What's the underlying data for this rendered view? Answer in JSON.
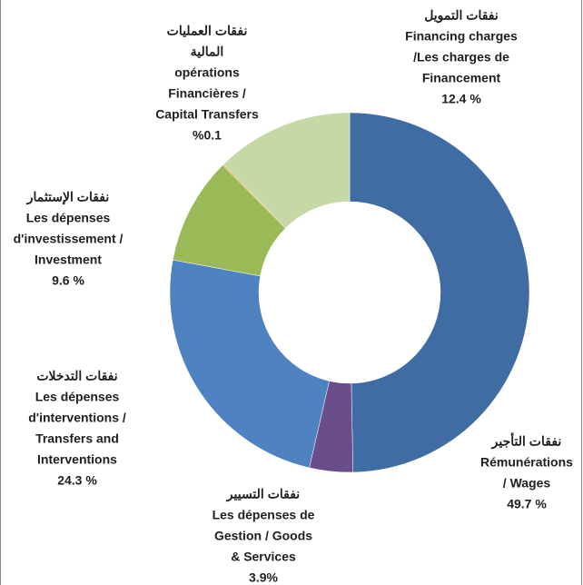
{
  "chart_data": {
    "type": "donut",
    "categories": [
      [
        "نفقات التأجير",
        "Rémunérations",
        "/  Wages"
      ],
      [
        "نفقات التسيير",
        "Les dépenses de",
        "Gestion /  Goods",
        "& Services"
      ],
      [
        "نفقات التدخلات",
        "Les dépenses",
        "d'interventions  /",
        "Transfers and",
        "Interventions"
      ],
      [
        "نفقات الإستثمار",
        "Les dépenses",
        "d'investissement /",
        "Investment"
      ],
      [
        "نفقات العمليات",
        "المالية",
        "opérations",
        "Financières  /",
        "Capital Transfers"
      ],
      [
        "نفقات التمويل",
        "Financing charges",
        "/Les charges de",
        "Financement"
      ]
    ],
    "values": [
      49.7,
      3.9,
      24.3,
      9.6,
      0.1,
      12.4
    ],
    "value_labels": [
      "49.7 %",
      "3.9%",
      "24.3 %",
      "9.6 %",
      "%0.1",
      "12.4 %"
    ],
    "colors": [
      "#3f6ca3",
      "#6a4e8c",
      "#4f82c0",
      "#9aba58",
      "#f39a3c",
      "#c6d8a6"
    ]
  }
}
